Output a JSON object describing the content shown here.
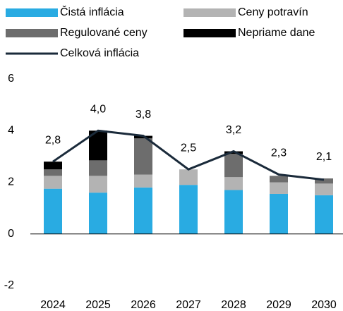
{
  "chart_data": {
    "type": "bar",
    "categories": [
      "2024",
      "2025",
      "2026",
      "2027",
      "2028",
      "2029",
      "2030"
    ],
    "series": [
      {
        "name": "Čistá inflácia",
        "color": "#29abe2",
        "values": [
          1.75,
          1.6,
          1.8,
          1.9,
          1.7,
          1.55,
          1.5
        ]
      },
      {
        "name": "Ceny potravín",
        "color": "#b3b3b3",
        "values": [
          0.5,
          0.65,
          0.5,
          0.6,
          0.5,
          0.45,
          0.45
        ]
      },
      {
        "name": "Regulované ceny",
        "color": "#6d6d6d",
        "values": [
          0.25,
          0.6,
          1.4,
          0,
          0.9,
          0.25,
          0.2
        ]
      },
      {
        "name": "Nepriame dane",
        "color": "#000000",
        "values": [
          0.3,
          1.15,
          0.1,
          0,
          0.1,
          0,
          0
        ]
      },
      {
        "name": "Celková inflácia",
        "color": "#1a2a3a",
        "type": "line",
        "values": [
          2.8,
          4.0,
          3.8,
          2.5,
          3.2,
          2.3,
          2.1
        ],
        "value_labels": [
          "2,8",
          "4,0",
          "3,8",
          "2,5",
          "3,2",
          "2,3",
          "2,1"
        ]
      }
    ],
    "ylim": [
      -2,
      6
    ],
    "yticks": [
      -2,
      0,
      2,
      4,
      6
    ],
    "stacked": true,
    "grid": false
  }
}
